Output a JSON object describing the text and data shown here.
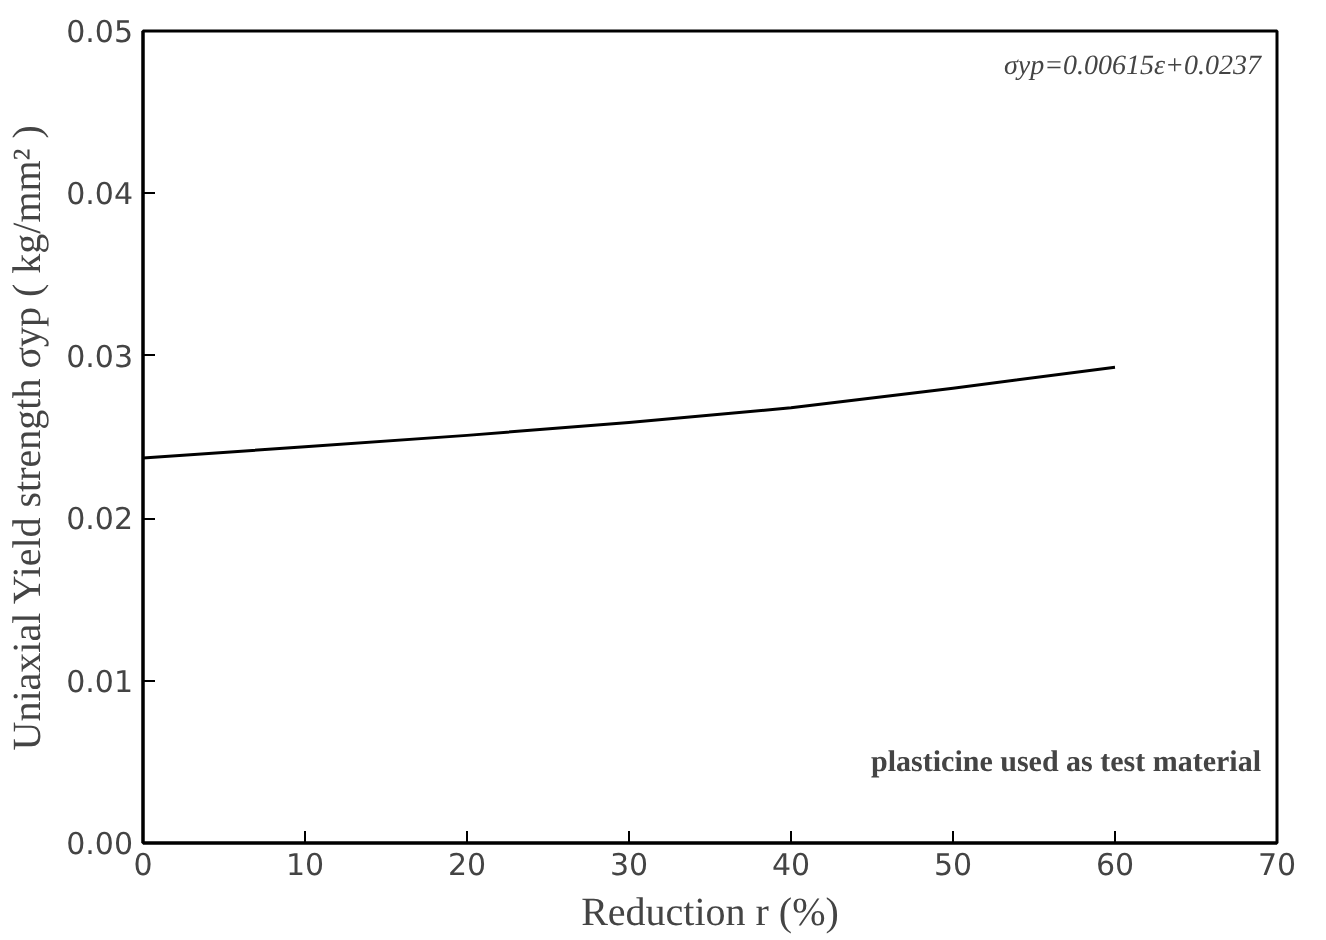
{
  "chart_data": {
    "type": "line",
    "xlabel": "Reduction r (%)",
    "ylabel": "Uniaxial Yield strength σyp ( kg/mm² )",
    "x": [
      0,
      10,
      20,
      30,
      40,
      50,
      60
    ],
    "series": [
      {
        "color": "#000000",
        "values": [
          0.0237,
          0.0244,
          0.0251,
          0.0259,
          0.0268,
          0.028,
          0.0293
        ]
      }
    ],
    "xlim": [
      0,
      70
    ],
    "ylim": [
      0,
      0.05
    ],
    "xticks": [
      0,
      10,
      20,
      30,
      40,
      50,
      60,
      70
    ],
    "yticks": [
      {
        "value": 0,
        "label": "0.00"
      },
      {
        "value": 0.01,
        "label": "0.01"
      },
      {
        "value": 0.02,
        "label": "0.02"
      },
      {
        "value": 0.03,
        "label": "0.03"
      },
      {
        "value": 0.04,
        "label": "0.04"
      },
      {
        "value": 0.05,
        "label": "0.05"
      }
    ],
    "annotations": [
      "σyp=0.00615ε+0.0237",
      "plasticine used as test material"
    ],
    "grid": false,
    "marker": "none",
    "line_style": "solid"
  }
}
